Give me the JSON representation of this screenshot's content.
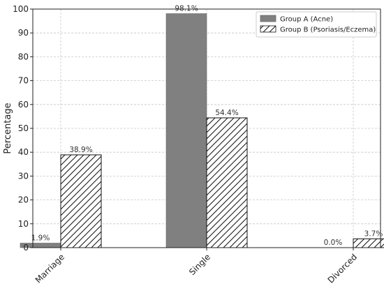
{
  "chart_data": {
    "type": "bar",
    "title": "",
    "xlabel": "",
    "ylabel": "Percentage",
    "ylim": [
      0,
      100
    ],
    "yticks": [
      0,
      10,
      20,
      30,
      40,
      50,
      60,
      70,
      80,
      90,
      100
    ],
    "categories": [
      "Marriage",
      "Single",
      "Divorced"
    ],
    "grid": true,
    "legend_position": "top-right",
    "series": [
      {
        "name": "Group A (Acne)",
        "values": [
          1.9,
          98.1,
          0.0
        ],
        "labels": [
          "1.9%",
          "98.1%",
          "0.0%"
        ],
        "color": "#808080",
        "pattern": "solid"
      },
      {
        "name": "Group B (Psoriasis/Eczema)",
        "values": [
          38.9,
          54.4,
          3.7
        ],
        "labels": [
          "38.9%",
          "54.4%",
          "3.7%"
        ],
        "color": "#ffffff",
        "pattern": "hatch"
      }
    ]
  }
}
